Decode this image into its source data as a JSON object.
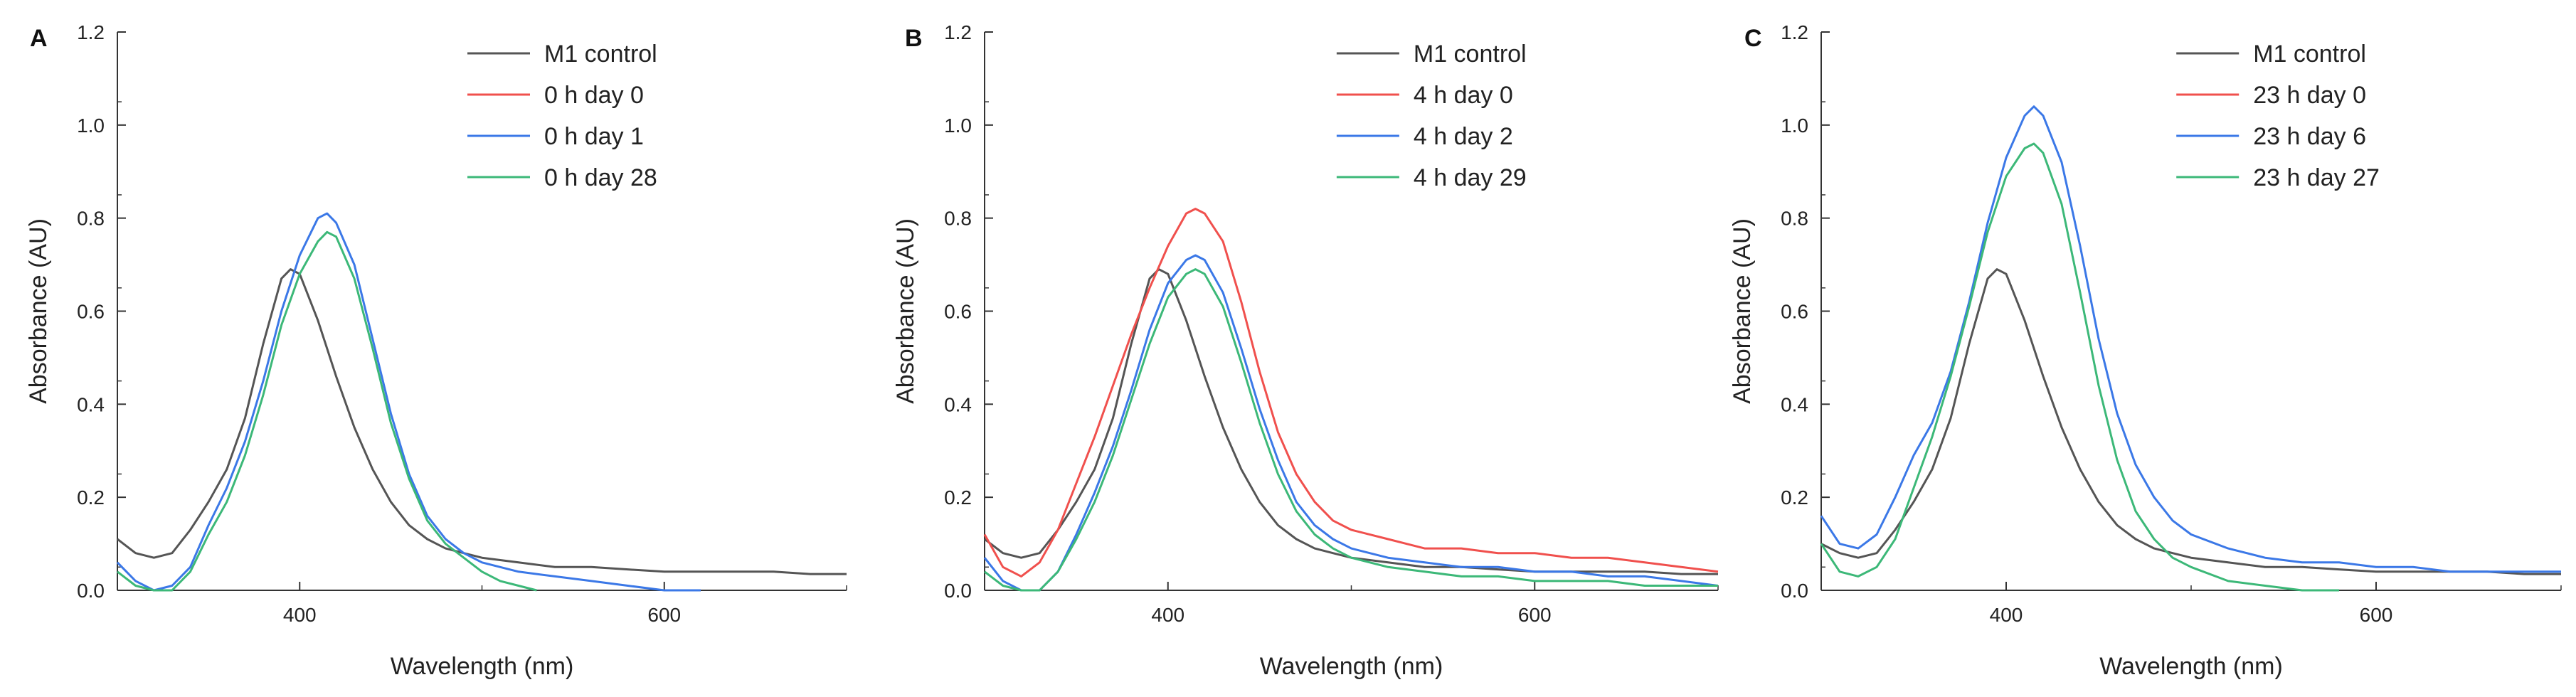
{
  "colors": {
    "control": "#555555",
    "red": "#f0504d",
    "blue": "#3b78e7",
    "green": "#3cb878",
    "axis": "#333333"
  },
  "chart_data": [
    {
      "type": "line",
      "panel_label": "A",
      "xlabel": "Wavelength (nm)",
      "ylabel": "Absorbance (AU)",
      "xlim": [
        300,
        700
      ],
      "ylim": [
        0,
        1.2
      ],
      "xticks": [
        400,
        600
      ],
      "yticks": [
        "0.0",
        "0.2",
        "0.4",
        "0.6",
        "0.8",
        "1.0",
        "1.2"
      ],
      "legend_position": "top-right",
      "series": [
        {
          "name": "M1 control",
          "color": "#555555",
          "x": [
            300,
            310,
            320,
            330,
            340,
            350,
            360,
            370,
            380,
            390,
            395,
            400,
            410,
            420,
            430,
            440,
            450,
            460,
            470,
            480,
            490,
            500,
            520,
            540,
            560,
            580,
            600,
            620,
            640,
            660,
            680,
            700
          ],
          "y": [
            0.11,
            0.08,
            0.07,
            0.08,
            0.13,
            0.19,
            0.26,
            0.37,
            0.53,
            0.67,
            0.69,
            0.68,
            0.58,
            0.46,
            0.35,
            0.26,
            0.19,
            0.14,
            0.11,
            0.09,
            0.08,
            0.07,
            0.06,
            0.05,
            0.05,
            0.045,
            0.04,
            0.04,
            0.04,
            0.04,
            0.035,
            0.035
          ]
        },
        {
          "name": "0 h day 0",
          "color": "#f0504d",
          "x": [],
          "y": []
        },
        {
          "name": "0 h day 1",
          "color": "#3b78e7",
          "x": [
            300,
            310,
            320,
            330,
            340,
            350,
            360,
            370,
            380,
            390,
            400,
            410,
            415,
            420,
            430,
            440,
            450,
            460,
            470,
            480,
            490,
            500,
            510,
            520,
            540,
            560,
            580,
            600,
            620
          ],
          "y": [
            0.06,
            0.02,
            0.0,
            0.01,
            0.05,
            0.14,
            0.22,
            0.32,
            0.45,
            0.6,
            0.72,
            0.8,
            0.81,
            0.79,
            0.7,
            0.54,
            0.38,
            0.25,
            0.16,
            0.11,
            0.08,
            0.06,
            0.05,
            0.04,
            0.03,
            0.02,
            0.01,
            0.0,
            0.0
          ]
        },
        {
          "name": "0 h day 28",
          "color": "#3cb878",
          "x": [
            300,
            310,
            320,
            330,
            340,
            350,
            360,
            370,
            380,
            390,
            400,
            410,
            415,
            420,
            430,
            440,
            450,
            460,
            470,
            480,
            490,
            500,
            510,
            520,
            530
          ],
          "y": [
            0.04,
            0.01,
            0.0,
            0.0,
            0.04,
            0.12,
            0.19,
            0.29,
            0.42,
            0.57,
            0.68,
            0.75,
            0.77,
            0.76,
            0.67,
            0.52,
            0.36,
            0.24,
            0.15,
            0.1,
            0.07,
            0.04,
            0.02,
            0.01,
            0.0
          ]
        }
      ]
    },
    {
      "type": "line",
      "panel_label": "B",
      "xlabel": "Wavelength (nm)",
      "ylabel": "Absorbance (AU)",
      "xlim": [
        300,
        700
      ],
      "ylim": [
        0,
        1.2
      ],
      "xticks": [
        400,
        600
      ],
      "yticks": [
        "0.0",
        "0.2",
        "0.4",
        "0.6",
        "0.8",
        "1.0",
        "1.2"
      ],
      "legend_position": "top-right",
      "series": [
        {
          "name": "M1 control",
          "color": "#555555",
          "x": [
            300,
            310,
            320,
            330,
            340,
            350,
            360,
            370,
            380,
            390,
            395,
            400,
            410,
            420,
            430,
            440,
            450,
            460,
            470,
            480,
            490,
            500,
            520,
            540,
            560,
            580,
            600,
            620,
            640,
            660,
            680,
            700
          ],
          "y": [
            0.11,
            0.08,
            0.07,
            0.08,
            0.13,
            0.19,
            0.26,
            0.37,
            0.53,
            0.67,
            0.69,
            0.68,
            0.58,
            0.46,
            0.35,
            0.26,
            0.19,
            0.14,
            0.11,
            0.09,
            0.08,
            0.07,
            0.06,
            0.05,
            0.05,
            0.045,
            0.04,
            0.04,
            0.04,
            0.04,
            0.035,
            0.035
          ]
        },
        {
          "name": "4 h day 0",
          "color": "#f0504d",
          "x": [
            300,
            310,
            320,
            330,
            340,
            350,
            360,
            370,
            380,
            390,
            400,
            410,
            415,
            420,
            430,
            440,
            450,
            460,
            470,
            480,
            490,
            500,
            520,
            540,
            560,
            580,
            600,
            620,
            640,
            660,
            680,
            700
          ],
          "y": [
            0.12,
            0.05,
            0.03,
            0.06,
            0.13,
            0.23,
            0.33,
            0.44,
            0.55,
            0.65,
            0.74,
            0.81,
            0.82,
            0.81,
            0.75,
            0.62,
            0.47,
            0.34,
            0.25,
            0.19,
            0.15,
            0.13,
            0.11,
            0.09,
            0.09,
            0.08,
            0.08,
            0.07,
            0.07,
            0.06,
            0.05,
            0.04
          ]
        },
        {
          "name": "4 h day 2",
          "color": "#3b78e7",
          "x": [
            300,
            310,
            320,
            330,
            340,
            350,
            360,
            370,
            380,
            390,
            400,
            410,
            415,
            420,
            430,
            440,
            450,
            460,
            470,
            480,
            490,
            500,
            520,
            540,
            560,
            580,
            600,
            620,
            640,
            660,
            680,
            700
          ],
          "y": [
            0.07,
            0.02,
            0.0,
            0.0,
            0.04,
            0.12,
            0.21,
            0.31,
            0.43,
            0.56,
            0.66,
            0.71,
            0.72,
            0.71,
            0.64,
            0.52,
            0.39,
            0.28,
            0.19,
            0.14,
            0.11,
            0.09,
            0.07,
            0.06,
            0.05,
            0.05,
            0.04,
            0.04,
            0.03,
            0.03,
            0.02,
            0.01
          ]
        },
        {
          "name": "4 h day 29",
          "color": "#3cb878",
          "x": [
            300,
            310,
            320,
            330,
            340,
            350,
            360,
            370,
            380,
            390,
            400,
            410,
            415,
            420,
            430,
            440,
            450,
            460,
            470,
            480,
            490,
            500,
            520,
            540,
            560,
            580,
            600,
            620,
            640,
            660,
            680,
            700
          ],
          "y": [
            0.04,
            0.01,
            0.0,
            0.0,
            0.04,
            0.11,
            0.19,
            0.29,
            0.41,
            0.53,
            0.63,
            0.68,
            0.69,
            0.68,
            0.61,
            0.49,
            0.36,
            0.25,
            0.17,
            0.12,
            0.09,
            0.07,
            0.05,
            0.04,
            0.03,
            0.03,
            0.02,
            0.02,
            0.02,
            0.01,
            0.01,
            0.01
          ]
        }
      ]
    },
    {
      "type": "line",
      "panel_label": "C",
      "xlabel": "Wavelength (nm)",
      "ylabel": "Absorbance (AU)",
      "xlim": [
        300,
        700
      ],
      "ylim": [
        0,
        1.2
      ],
      "xticks": [
        400,
        600
      ],
      "yticks": [
        "0.0",
        "0.2",
        "0.4",
        "0.6",
        "0.8",
        "1.0",
        "1.2"
      ],
      "legend_position": "top-right",
      "series": [
        {
          "name": "M1 control",
          "color": "#555555",
          "x": [
            300,
            310,
            320,
            330,
            340,
            350,
            360,
            370,
            380,
            390,
            395,
            400,
            410,
            420,
            430,
            440,
            450,
            460,
            470,
            480,
            490,
            500,
            520,
            540,
            560,
            580,
            600,
            620,
            640,
            660,
            680,
            700
          ],
          "y": [
            0.1,
            0.08,
            0.07,
            0.08,
            0.13,
            0.19,
            0.26,
            0.37,
            0.53,
            0.67,
            0.69,
            0.68,
            0.58,
            0.46,
            0.35,
            0.26,
            0.19,
            0.14,
            0.11,
            0.09,
            0.08,
            0.07,
            0.06,
            0.05,
            0.05,
            0.045,
            0.04,
            0.04,
            0.04,
            0.04,
            0.035,
            0.035
          ]
        },
        {
          "name": "23 h day 0",
          "color": "#f0504d",
          "x": [],
          "y": []
        },
        {
          "name": "23 h day 6",
          "color": "#3b78e7",
          "x": [
            300,
            310,
            320,
            330,
            340,
            350,
            360,
            370,
            380,
            390,
            400,
            410,
            415,
            420,
            430,
            440,
            450,
            460,
            470,
            480,
            490,
            500,
            520,
            540,
            560,
            580,
            600,
            620,
            640,
            660,
            680,
            700
          ],
          "y": [
            0.16,
            0.1,
            0.09,
            0.12,
            0.2,
            0.29,
            0.36,
            0.47,
            0.62,
            0.79,
            0.93,
            1.02,
            1.04,
            1.02,
            0.92,
            0.74,
            0.54,
            0.38,
            0.27,
            0.2,
            0.15,
            0.12,
            0.09,
            0.07,
            0.06,
            0.06,
            0.05,
            0.05,
            0.04,
            0.04,
            0.04,
            0.04
          ]
        },
        {
          "name": "23 h day 27",
          "color": "#3cb878",
          "x": [
            300,
            310,
            320,
            330,
            340,
            350,
            360,
            370,
            380,
            390,
            400,
            410,
            415,
            420,
            430,
            440,
            450,
            460,
            470,
            480,
            490,
            500,
            520,
            540,
            560,
            580
          ],
          "y": [
            0.1,
            0.04,
            0.03,
            0.05,
            0.11,
            0.22,
            0.33,
            0.46,
            0.61,
            0.77,
            0.89,
            0.95,
            0.96,
            0.94,
            0.83,
            0.64,
            0.44,
            0.28,
            0.17,
            0.11,
            0.07,
            0.05,
            0.02,
            0.01,
            0.0,
            0.0
          ]
        }
      ]
    }
  ]
}
